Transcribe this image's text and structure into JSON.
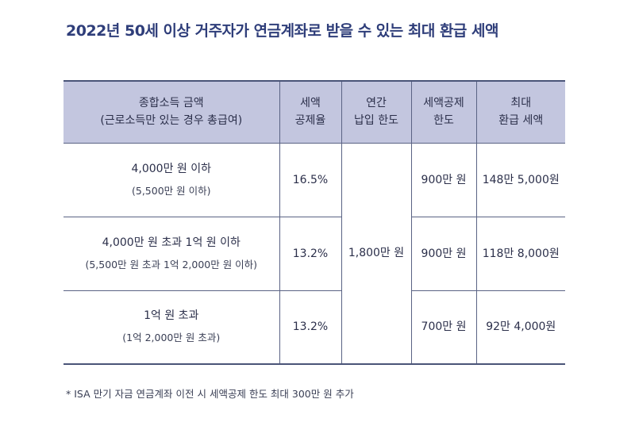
{
  "title": "2022년 50세 이상 거주자가 연금계좌로 받을 수 있는 최대 환급 세액",
  "table": {
    "headers": [
      {
        "line1": "종합소득 금액",
        "line2": "(근로소득만 있는 경우 총급여)"
      },
      {
        "line1": "세액",
        "line2": "공제율"
      },
      {
        "line1": "연간",
        "line2": "납입 한도"
      },
      {
        "line1": "세액공제",
        "line2": "한도"
      },
      {
        "line1": "최대",
        "line2": "환급 세액"
      }
    ],
    "annual_limit": "1,800만 원",
    "rows": [
      {
        "income": "4,000만 원 이하",
        "salary": "(5,500만 원 이하)",
        "rate": "16.5%",
        "credit_limit": "900만 원",
        "max_refund": "148만 5,000원"
      },
      {
        "income": "4,000만 원 초과 1억 원 이하",
        "salary": "(5,500만 원 초과 1억 2,000만 원 이하)",
        "rate": "13.2%",
        "credit_limit": "900만 원",
        "max_refund": "118만 8,000원"
      },
      {
        "income": "1억 원 초과",
        "salary": "(1억 2,000만 원 초과)",
        "rate": "13.2%",
        "credit_limit": "700만 원",
        "max_refund": "92만 4,000원"
      }
    ]
  },
  "footnote": "* ISA 만기 자금 연금계좌 이전 시 세액공제 한도 최대 300만 원 추가"
}
